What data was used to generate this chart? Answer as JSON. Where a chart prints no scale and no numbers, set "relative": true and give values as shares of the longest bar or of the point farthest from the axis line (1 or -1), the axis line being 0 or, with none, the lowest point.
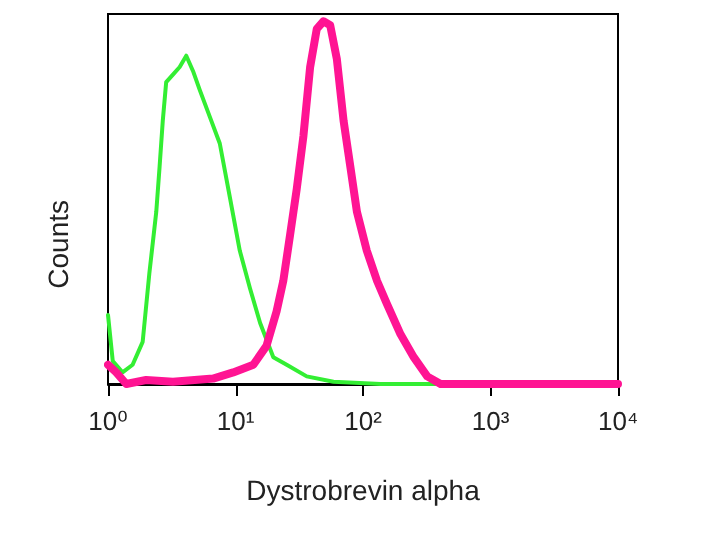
{
  "chart_data": {
    "type": "line",
    "relative": true,
    "xlabel": "Dystrobrevin alpha",
    "ylabel": "Counts",
    "log": "x",
    "xlim": [
      1,
      10000
    ],
    "xticks": [
      {
        "value": 1,
        "label": "10⁰"
      },
      {
        "value": 10,
        "label": "10¹"
      },
      {
        "value": 100,
        "label": "10²"
      },
      {
        "value": 1000,
        "label": "10³"
      },
      {
        "value": 10000,
        "label": "10⁴"
      }
    ],
    "grid": false,
    "marker": "none",
    "line_style": "solid",
    "series": [
      {
        "color": "#33ee33",
        "x": [
          1,
          1.09,
          1.3,
          1.56,
          1.87,
          2.11,
          2.39,
          2.54,
          2.69,
          2.86,
          3.23,
          3.65,
          4.11,
          4.64,
          5.24,
          6.28,
          7.53,
          9.02,
          10.8,
          13,
          15.6,
          19.8,
          25.2,
          36.2,
          58.7,
          137,
          319,
          839,
          10000
        ],
        "values": [
          0.19,
          0.063,
          0.032,
          0.053,
          0.116,
          0.305,
          0.474,
          0.6,
          0.726,
          0.832,
          0.853,
          0.874,
          0.905,
          0.863,
          0.811,
          0.737,
          0.663,
          0.516,
          0.368,
          0.263,
          0.168,
          0.074,
          0.053,
          0.021,
          0.006,
          0,
          0,
          0,
          0
        ]
      },
      {
        "color": "#ff1493",
        "x": [
          1,
          1.16,
          1.39,
          1.99,
          3.23,
          6.67,
          9.59,
          13.8,
          17.5,
          21,
          23.7,
          26.8,
          30.2,
          34.1,
          38.5,
          43.4,
          49,
          55.3,
          62.4,
          70.4,
          79.5,
          89.7,
          107,
          129,
          154,
          197,
          250,
          319,
          406,
          10000
        ],
        "values": [
          0.053,
          0.032,
          0,
          0.011,
          0.006,
          0.015,
          0.032,
          0.053,
          0.105,
          0.2,
          0.284,
          0.411,
          0.537,
          0.684,
          0.874,
          0.979,
          1,
          0.989,
          0.895,
          0.726,
          0.6,
          0.474,
          0.368,
          0.284,
          0.221,
          0.137,
          0.074,
          0.021,
          0,
          0
        ]
      }
    ]
  }
}
